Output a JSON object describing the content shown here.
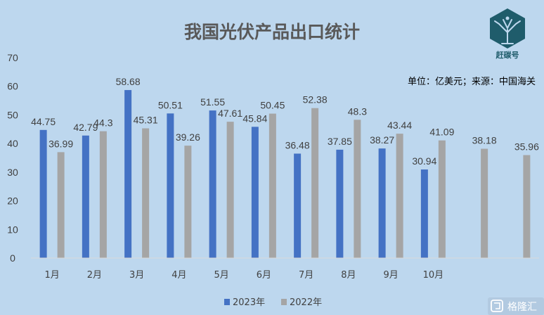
{
  "chart_data": {
    "type": "bar",
    "title": "我国光伏产品出口统计",
    "unit_note": "单位：亿美元；来源：中国海关",
    "categories": [
      "1月",
      "2月",
      "3月",
      "4月",
      "5月",
      "6月",
      "7月",
      "8月",
      "9月",
      "10月",
      "",
      ""
    ],
    "series": [
      {
        "name": "2023年",
        "color": "#4472c4",
        "values": [
          44.75,
          42.79,
          58.68,
          50.51,
          51.55,
          45.84,
          36.48,
          37.85,
          38.27,
          30.94,
          null,
          null
        ]
      },
      {
        "name": "2022年",
        "color": "#a5a5a5",
        "values": [
          36.99,
          44.3,
          45.31,
          39.26,
          47.61,
          50.45,
          52.38,
          48.3,
          43.44,
          41.09,
          38.18,
          35.96
        ]
      }
    ],
    "yticks": [
      "0",
      "10",
      "20",
      "30",
      "40",
      "50",
      "60",
      "70"
    ],
    "ylim": [
      0,
      70
    ],
    "grid": false,
    "legend_position": "bottom"
  },
  "brand": {
    "name": "赶碳号",
    "icon": "tree-hexagon-icon",
    "color": "#1f5c6b"
  },
  "watermark": {
    "text": "格隆汇",
    "icon": "glh-logo-icon"
  }
}
